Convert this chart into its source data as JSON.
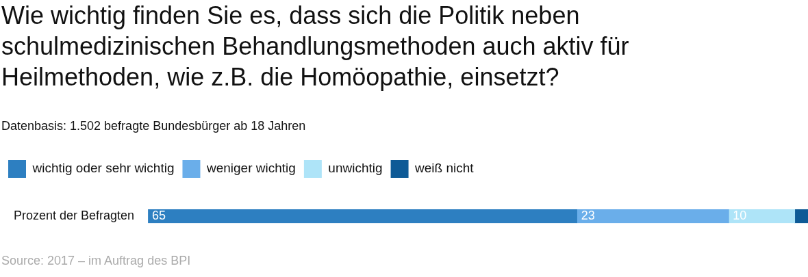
{
  "chart_data": {
    "type": "bar",
    "orientation": "horizontal",
    "stacked": true,
    "title": "Wie wichtig finden Sie es, dass sich die Politik neben schulmedizinischen Behandlungsmethoden auch aktiv für Heilmethoden, wie z.B. die Homöopathie, einsetzt?",
    "subtitle": "Datenbasis: 1.502 befragte Bundesbürger ab 18 Jahren",
    "categories": [
      "Prozent der Befragten"
    ],
    "series": [
      {
        "name": "wichtig oder sehr wichtig",
        "color": "#2d7fc1",
        "values": [
          65
        ],
        "value_labels": [
          "65"
        ]
      },
      {
        "name": "weniger wichtig",
        "color": "#6aaeea",
        "values": [
          23
        ],
        "value_labels": [
          "23"
        ]
      },
      {
        "name": "unwichtig",
        "color": "#aee4f8",
        "values": [
          10
        ],
        "value_labels": [
          "10"
        ]
      },
      {
        "name": "weiß nicht",
        "color": "#0e5a96",
        "values": [
          2
        ],
        "value_labels": [
          null
        ]
      }
    ],
    "xlim": [
      0,
      100
    ],
    "tick_labels": "y",
    "grid": false,
    "legend": "top left",
    "annotations": [
      "Source: 2017 – im Auftrag des BPI"
    ]
  }
}
